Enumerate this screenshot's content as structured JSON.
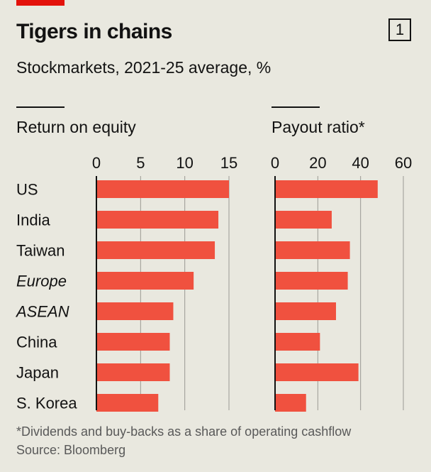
{
  "header": {
    "title": "Tigers in chains",
    "chart_number": "1",
    "subtitle": "Stockmarkets, 2021-25 average, %"
  },
  "footer": {
    "note": "*Dividends and buy-backs as a share of operating cashflow",
    "source": "Source: Bloomberg"
  },
  "colors": {
    "bar": "#f0513f",
    "grid": "#9a9a94",
    "axis": "#121212",
    "background": "#e9e8df"
  },
  "chart_data": [
    {
      "type": "bar",
      "orientation": "horizontal",
      "title": "Return on equity",
      "categories": [
        "US",
        "India",
        "Taiwan",
        "Europe",
        "ASEAN",
        "China",
        "Japan",
        "S. Korea"
      ],
      "italic_categories": [
        "Europe",
        "ASEAN"
      ],
      "values": [
        15.0,
        13.8,
        13.4,
        11.0,
        8.7,
        8.3,
        8.3,
        7.0
      ],
      "xlim": [
        0,
        15
      ],
      "ticks": [
        0,
        5,
        10,
        15
      ],
      "grid": true
    },
    {
      "type": "bar",
      "orientation": "horizontal",
      "title": "Payout ratio*",
      "categories": [
        "US",
        "India",
        "Taiwan",
        "Europe",
        "ASEAN",
        "China",
        "Japan",
        "S. Korea"
      ],
      "values": [
        48,
        26.5,
        35,
        34,
        28.5,
        21,
        39,
        14.5
      ],
      "xlim": [
        0,
        60
      ],
      "ticks": [
        0,
        20,
        40,
        60
      ],
      "grid": true
    }
  ]
}
